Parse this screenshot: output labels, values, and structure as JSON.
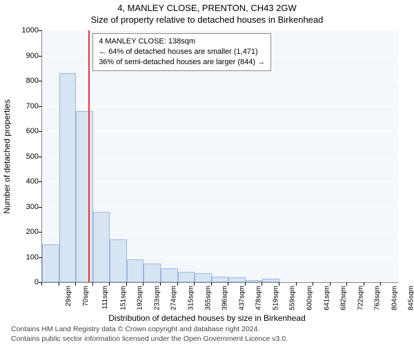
{
  "title": "4, MANLEY CLOSE, PRENTON, CH43 2GW",
  "subtitle": "Size of property relative to detached houses in Birkenhead",
  "chart": {
    "type": "histogram",
    "background_color": "#f4f7fb",
    "grid_color": "#ffffff",
    "bar_fill": "#d7e4f4",
    "bar_stroke": "#9bb8dc",
    "marker_color": "#ee3030",
    "marker_x": 138,
    "xlim": [
      29,
      866
    ],
    "ylim": [
      0,
      1000
    ],
    "ytick_step": 100,
    "x_categories": [
      "29sqm",
      "70sqm",
      "111sqm",
      "151sqm",
      "192sqm",
      "233sqm",
      "274sqm",
      "315sqm",
      "355sqm",
      "396sqm",
      "437sqm",
      "478sqm",
      "519sqm",
      "559sqm",
      "600sqm",
      "641sqm",
      "682sqm",
      "722sqm",
      "763sqm",
      "804sqm",
      "845sqm"
    ],
    "values": [
      150,
      830,
      680,
      280,
      170,
      90,
      75,
      55,
      40,
      35,
      22,
      20,
      8,
      15,
      0,
      0,
      0,
      0,
      0,
      0,
      0
    ],
    "yaxis_title": "Number of detached properties",
    "xaxis_title": "Distribution of detached houses by size in Birkenhead",
    "tooltip": {
      "line1": "4 MANLEY CLOSE: 138sqm",
      "line2": "← 64% of detached houses are smaller (1,471)",
      "line3": "36% of semi-detached houses are larger (844) →"
    },
    "label_fontsize": 11,
    "axis_title_fontsize": 12
  },
  "footnote1": "Contains HM Land Registry data © Crown copyright and database right 2024.",
  "footnote2": "Contains public sector information licensed under the Open Government Licence v3.0."
}
